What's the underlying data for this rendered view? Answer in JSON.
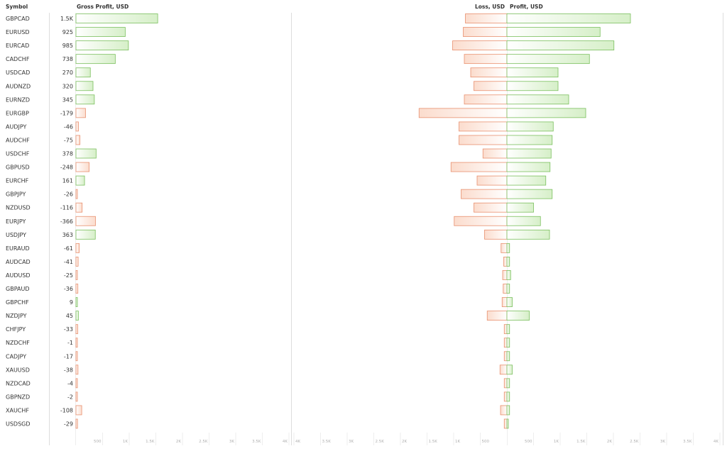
{
  "headers": {
    "symbol": "Symbol",
    "gross_profit": "Gross Profit, USD",
    "loss": "Loss, USD",
    "profit": "Profit, USD"
  },
  "chart_data": [
    {
      "type": "bar",
      "title": "Gross Profit, USD",
      "orientation": "horizontal",
      "categories": [
        "GBPCAD",
        "EURUSD",
        "EURCAD",
        "CADCHF",
        "USDCAD",
        "AUDNZD",
        "EURNZD",
        "EURGBP",
        "AUDJPY",
        "AUDCHF",
        "USDCHF",
        "GBPUSD",
        "EURCHF",
        "GBPJPY",
        "NZDUSD",
        "EURJPY",
        "USDJPY",
        "EURAUD",
        "AUDCAD",
        "AUDUSD",
        "GBPAUD",
        "GBPCHF",
        "NZDJPY",
        "CHFJPY",
        "NZDCHF",
        "CADJPY",
        "XAUUSD",
        "NZDCAD",
        "GBPNZD",
        "XAUCHF",
        "USDSGD"
      ],
      "values": [
        1535,
        925,
        985,
        738,
        270,
        320,
        345,
        -179,
        -46,
        -75,
        378,
        -248,
        161,
        -26,
        -116,
        -366,
        363,
        -61,
        -41,
        -25,
        -36,
        9,
        45,
        -33,
        -1,
        -17,
        -38,
        -4,
        -2,
        -108,
        -29
      ],
      "value_labels": [
        "1.5K",
        "925",
        "985",
        "738",
        "270",
        "320",
        "345",
        "-179",
        "-46",
        "-75",
        "378",
        "-248",
        "161",
        "-26",
        "-116",
        "-366",
        "363",
        "-61",
        "-41",
        "-25",
        "-36",
        "9",
        "45",
        "-33",
        "-1",
        "-17",
        "-38",
        "-4",
        "-2",
        "-108",
        "-29"
      ],
      "xlim": [
        0,
        4000
      ],
      "x_ticks": [
        "500",
        "1K",
        "1.5K",
        "2K",
        "2.5K",
        "3K",
        "3.5K",
        "4K"
      ],
      "colors": {
        "positive": "#7bbf5e",
        "negative": "#e8906f"
      }
    },
    {
      "type": "bar",
      "orientation": "horizontal-diverging",
      "categories": [
        "GBPCAD",
        "EURUSD",
        "EURCAD",
        "CADCHF",
        "USDCAD",
        "AUDNZD",
        "EURNZD",
        "EURGBP",
        "AUDJPY",
        "AUDCHF",
        "USDCHF",
        "GBPUSD",
        "EURCHF",
        "GBPJPY",
        "NZDUSD",
        "EURJPY",
        "USDJPY",
        "EURAUD",
        "AUDCAD",
        "AUDUSD",
        "GBPAUD",
        "GBPCHF",
        "NZDJPY",
        "CHFJPY",
        "NZDCHF",
        "CADJPY",
        "XAUUSD",
        "NZDCAD",
        "GBPNZD",
        "XAUCHF",
        "USDSGD"
      ],
      "series": [
        {
          "name": "Loss, USD",
          "values": [
            780,
            820,
            1020,
            800,
            680,
            620,
            800,
            1650,
            900,
            900,
            450,
            1050,
            560,
            860,
            620,
            990,
            420,
            110,
            60,
            80,
            70,
            90,
            370,
            50,
            50,
            50,
            130,
            50,
            50,
            120,
            50
          ]
        },
        {
          "name": "Profit, USD",
          "values": [
            2320,
            1750,
            2010,
            1550,
            960,
            960,
            1160,
            1480,
            870,
            850,
            830,
            810,
            730,
            850,
            500,
            630,
            800,
            50,
            50,
            70,
            50,
            100,
            420,
            50,
            50,
            50,
            100,
            50,
            50,
            50,
            20
          ]
        }
      ],
      "left_xlim": [
        4000,
        0
      ],
      "right_xlim": [
        0,
        4000
      ],
      "left_ticks": [
        "4K",
        "3.5K",
        "3K",
        "2.5K",
        "2K",
        "1.5K",
        "1K",
        "500"
      ],
      "right_ticks": [
        "500",
        "1K",
        "1.5K",
        "2K",
        "2.5K",
        "3K",
        "3.5K",
        "4K"
      ],
      "colors": {
        "loss": "#e8906f",
        "profit": "#7bbf5e"
      }
    }
  ]
}
